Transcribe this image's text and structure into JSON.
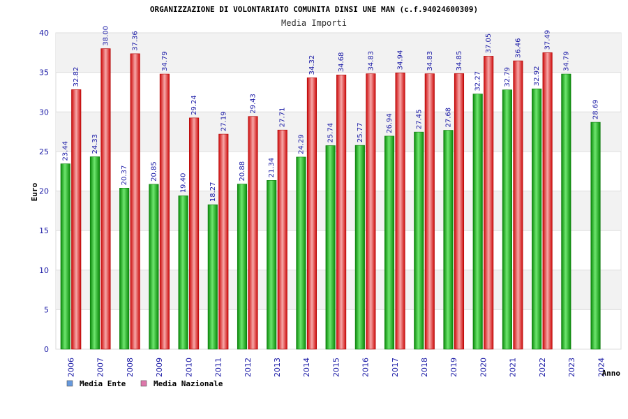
{
  "chart_data": {
    "type": "bar",
    "title": "ORGANIZZAZIONE DI VOLONTARIATO COMUNITA DINSI UNE MAN (c.f.94024600309)",
    "subtitle": "Media Importi",
    "ylabel": "Euro",
    "xlabel": "Anno",
    "ylim": [
      0,
      40
    ],
    "yticks": [
      "0",
      "5",
      "10",
      "15",
      "20",
      "25",
      "30",
      "35",
      "40"
    ],
    "categories": [
      "2006",
      "2007",
      "2008",
      "2009",
      "2010",
      "2011",
      "2012",
      "2013",
      "2014",
      "2015",
      "2016",
      "2017",
      "2018",
      "2019",
      "2020",
      "2021",
      "2022",
      "2023",
      "2024"
    ],
    "series": [
      {
        "name": "Media Ente",
        "color": "#22bb22",
        "legend_color": "#6699dd",
        "values": [
          23.44,
          24.33,
          20.37,
          20.85,
          19.4,
          18.27,
          20.88,
          21.34,
          24.29,
          25.74,
          25.77,
          26.94,
          27.45,
          27.68,
          32.27,
          32.79,
          32.92,
          34.79,
          28.69
        ],
        "labels": [
          "23.44",
          "24.33",
          "20.37",
          "20.85",
          "19.40",
          "18.27",
          "20.88",
          "21.34",
          "24.29",
          "25.74",
          "25.77",
          "26.94",
          "27.45",
          "27.68",
          "32.27",
          "32.79",
          "32.92",
          "34.79",
          "28.69"
        ]
      },
      {
        "name": "Media Nazionale",
        "color": "#ee2222",
        "legend_color": "#dd77aa",
        "values": [
          32.82,
          38.0,
          37.36,
          34.79,
          29.24,
          27.19,
          29.43,
          27.71,
          34.32,
          34.68,
          34.83,
          34.94,
          34.83,
          34.85,
          37.05,
          36.46,
          37.49,
          null,
          null
        ],
        "labels": [
          "32.82",
          "38.00",
          "37.36",
          "34.79",
          "29.24",
          "27.19",
          "29.43",
          "27.71",
          "34.32",
          "34.68",
          "34.83",
          "34.94",
          "34.83",
          "34.85",
          "37.05",
          "36.46",
          "37.49",
          null,
          null
        ]
      }
    ],
    "grid": true,
    "legend_position": "bottom-left"
  }
}
